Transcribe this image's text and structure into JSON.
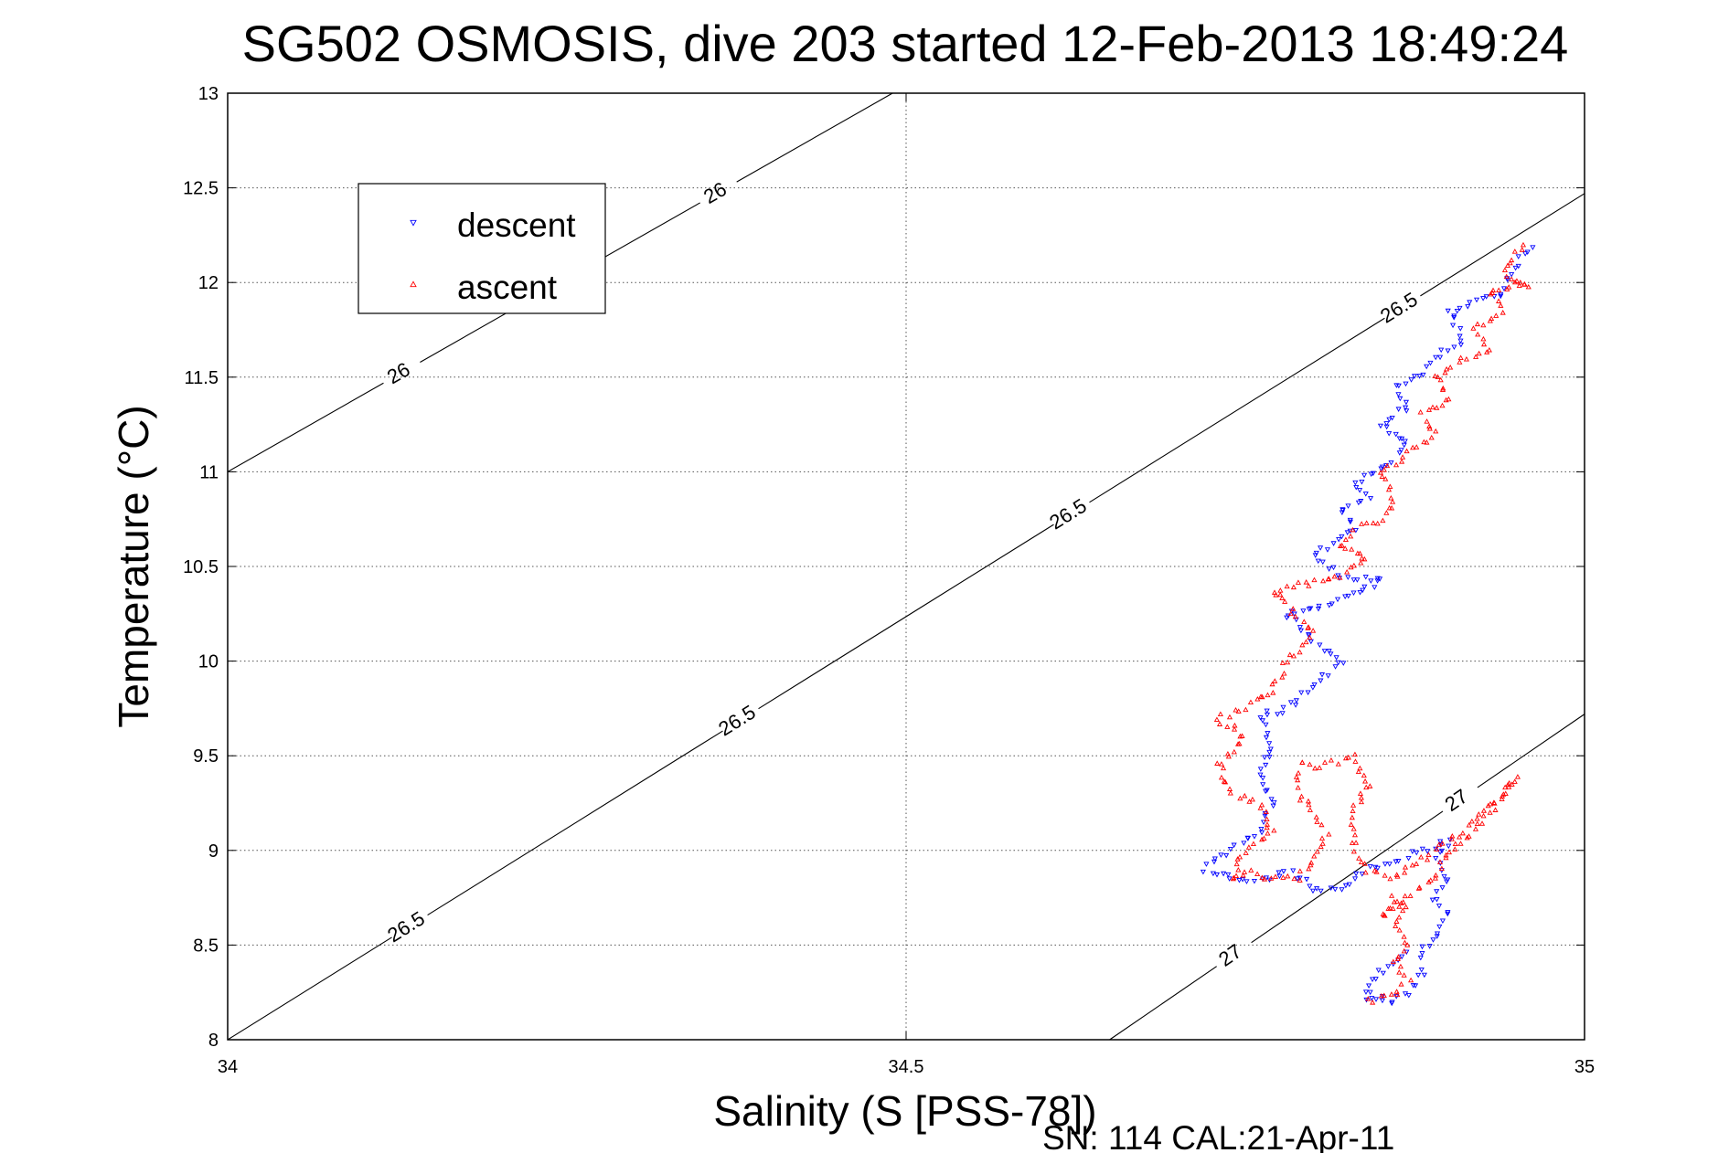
{
  "chart_data": {
    "type": "scatter",
    "title": "SG502 OSMOSIS, dive 203 started 12-Feb-2013 18:49:24",
    "xlabel": "Salinity (S [PSS-78])",
    "ylabel": "Temperature (°C)",
    "footer": "SN: 114  CAL:21-Apr-11",
    "xlim": [
      34,
      35
    ],
    "ylim": [
      8,
      13
    ],
    "xticks": [
      34,
      34.5,
      35
    ],
    "xtick_labels": [
      "34",
      "34.5",
      "35"
    ],
    "yticks": [
      8,
      8.5,
      9,
      9.5,
      10,
      10.5,
      11,
      11.5,
      12,
      12.5,
      13
    ],
    "ytick_labels": [
      "8",
      "8.5",
      "9",
      "9.5",
      "10",
      "10.5",
      "11",
      "11.5",
      "12",
      "12.5",
      "13"
    ],
    "grid": true,
    "legend_position": "top-left",
    "series": [
      {
        "name": "descent",
        "color": "#0000ff",
        "marker": "triangle-down",
        "path": [
          [
            34.96,
            12.2
          ],
          [
            34.95,
            12.1
          ],
          [
            34.94,
            11.95
          ],
          [
            34.92,
            11.9
          ],
          [
            34.9,
            11.85
          ],
          [
            34.91,
            11.7
          ],
          [
            34.89,
            11.6
          ],
          [
            34.88,
            11.5
          ],
          [
            34.86,
            11.45
          ],
          [
            34.87,
            11.35
          ],
          [
            34.85,
            11.25
          ],
          [
            34.87,
            11.15
          ],
          [
            34.85,
            11.0
          ],
          [
            34.83,
            10.95
          ],
          [
            34.84,
            10.85
          ],
          [
            34.82,
            10.8
          ],
          [
            34.83,
            10.7
          ],
          [
            34.81,
            10.6
          ],
          [
            34.8,
            10.55
          ],
          [
            34.82,
            10.45
          ],
          [
            34.85,
            10.42
          ],
          [
            34.83,
            10.35
          ],
          [
            34.81,
            10.3
          ],
          [
            34.78,
            10.25
          ],
          [
            34.8,
            10.1
          ],
          [
            34.82,
            10.0
          ],
          [
            34.8,
            9.85
          ],
          [
            34.78,
            9.75
          ],
          [
            34.76,
            9.7
          ],
          [
            34.77,
            9.55
          ],
          [
            34.76,
            9.4
          ],
          [
            34.77,
            9.25
          ],
          [
            34.76,
            9.1
          ],
          [
            34.74,
            9.0
          ],
          [
            34.73,
            8.95
          ],
          [
            34.72,
            8.9
          ],
          [
            34.74,
            8.85
          ],
          [
            34.77,
            8.85
          ],
          [
            34.78,
            8.9
          ],
          [
            34.79,
            8.85
          ],
          [
            34.8,
            8.8
          ],
          [
            34.82,
            8.8
          ],
          [
            34.84,
            8.9
          ],
          [
            34.86,
            8.95
          ],
          [
            34.88,
            9.0
          ],
          [
            34.9,
            9.05
          ],
          [
            34.89,
            8.95
          ],
          [
            34.9,
            8.85
          ],
          [
            34.89,
            8.75
          ],
          [
            34.9,
            8.65
          ],
          [
            34.89,
            8.55
          ],
          [
            34.88,
            8.45
          ],
          [
            34.88,
            8.35
          ],
          [
            34.87,
            8.25
          ],
          [
            34.86,
            8.2
          ],
          [
            34.85,
            8.22
          ],
          [
            34.84,
            8.2
          ],
          [
            34.84,
            8.3
          ],
          [
            34.86,
            8.4
          ],
          [
            34.87,
            8.5
          ]
        ]
      },
      {
        "name": "ascent",
        "color": "#ff0000",
        "marker": "triangle-up",
        "path": [
          [
            34.84,
            8.2
          ],
          [
            34.86,
            8.25
          ],
          [
            34.87,
            8.3
          ],
          [
            34.86,
            8.4
          ],
          [
            34.87,
            8.5
          ],
          [
            34.86,
            8.6
          ],
          [
            34.87,
            8.7
          ],
          [
            34.86,
            8.75
          ],
          [
            34.85,
            8.65
          ],
          [
            34.87,
            8.75
          ],
          [
            34.89,
            8.85
          ],
          [
            34.9,
            9.0
          ],
          [
            34.92,
            9.1
          ],
          [
            34.93,
            9.2
          ],
          [
            34.94,
            9.3
          ],
          [
            34.95,
            9.38
          ],
          [
            34.94,
            9.3
          ],
          [
            34.91,
            9.1
          ],
          [
            34.88,
            8.95
          ],
          [
            34.86,
            8.85
          ],
          [
            34.84,
            8.9
          ],
          [
            34.83,
            9.0
          ],
          [
            34.83,
            9.2
          ],
          [
            34.84,
            9.35
          ],
          [
            34.83,
            9.5
          ],
          [
            34.81,
            9.45
          ],
          [
            34.79,
            9.45
          ],
          [
            34.79,
            9.3
          ],
          [
            34.81,
            9.1
          ],
          [
            34.8,
            8.95
          ],
          [
            34.79,
            8.85
          ],
          [
            34.77,
            8.85
          ],
          [
            34.75,
            8.9
          ],
          [
            34.74,
            8.85
          ],
          [
            34.75,
            9.0
          ],
          [
            34.77,
            9.1
          ],
          [
            34.76,
            9.25
          ],
          [
            34.74,
            9.3
          ],
          [
            34.73,
            9.45
          ],
          [
            34.75,
            9.6
          ],
          [
            34.73,
            9.7
          ],
          [
            34.75,
            9.75
          ],
          [
            34.77,
            9.85
          ],
          [
            34.78,
            10.0
          ],
          [
            34.8,
            10.15
          ],
          [
            34.78,
            10.3
          ],
          [
            34.77,
            10.35
          ],
          [
            34.79,
            10.4
          ],
          [
            34.82,
            10.45
          ],
          [
            34.84,
            10.55
          ],
          [
            34.82,
            10.6
          ],
          [
            34.83,
            10.7
          ],
          [
            34.85,
            10.75
          ],
          [
            34.86,
            10.85
          ],
          [
            34.85,
            11.0
          ],
          [
            34.87,
            11.1
          ],
          [
            34.89,
            11.2
          ],
          [
            34.88,
            11.3
          ],
          [
            34.9,
            11.4
          ],
          [
            34.89,
            11.5
          ],
          [
            34.91,
            11.6
          ],
          [
            34.93,
            11.65
          ],
          [
            34.92,
            11.75
          ],
          [
            34.94,
            11.85
          ],
          [
            34.93,
            11.95
          ],
          [
            34.95,
            12.0
          ],
          [
            34.96,
            11.97
          ],
          [
            34.94,
            12.05
          ],
          [
            34.95,
            12.15
          ],
          [
            34.96,
            12.2
          ]
        ]
      }
    ],
    "density_contours": [
      {
        "sigma": 26,
        "labels": [
          "26",
          "26"
        ],
        "points": [
          [
            34.0,
            11.0
          ],
          [
            34.49,
            13.0
          ]
        ]
      },
      {
        "sigma": 26.5,
        "labels": [
          "26.5",
          "26.5",
          "26.5",
          "26.5"
        ],
        "points": [
          [
            34.0,
            8.0
          ],
          [
            35.0,
            12.47
          ]
        ]
      },
      {
        "sigma": 27,
        "labels": [
          "27",
          "27"
        ],
        "points": [
          [
            34.65,
            8.0
          ],
          [
            35.0,
            9.72
          ]
        ]
      }
    ]
  }
}
